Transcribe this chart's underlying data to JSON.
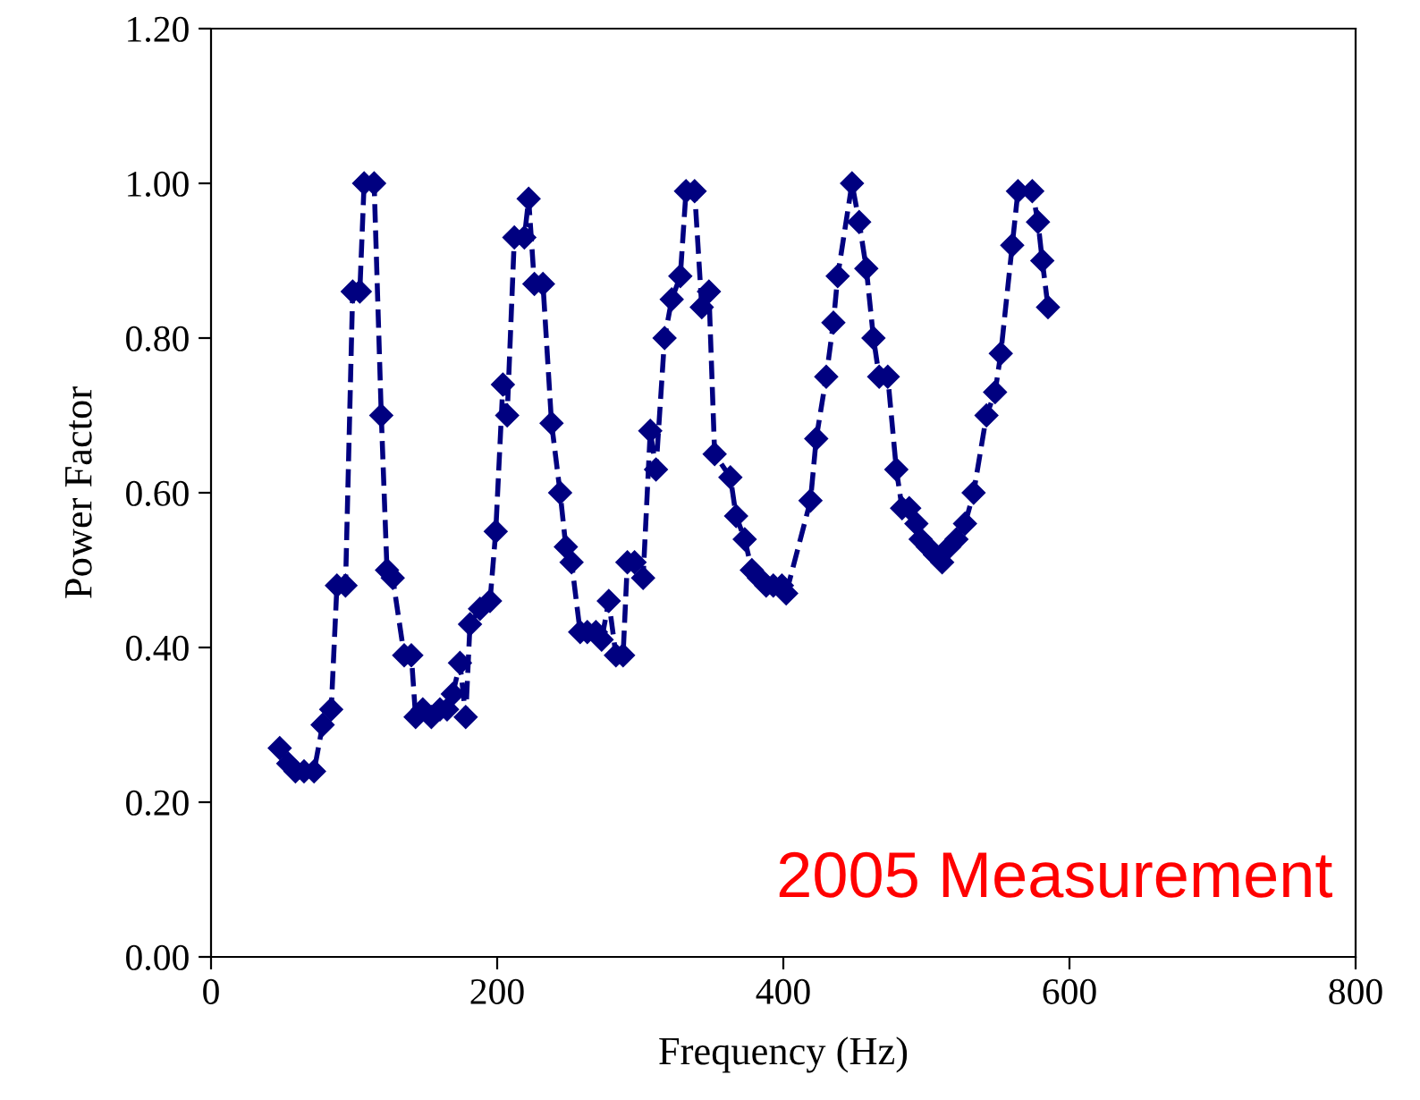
{
  "chart_data": {
    "type": "line",
    "xlabel": "Frequency (Hz)",
    "ylabel": "Power Factor",
    "xlim": [
      0,
      800
    ],
    "xticks": [
      0,
      200,
      400,
      600,
      800
    ],
    "ylim": [
      0,
      1.2
    ],
    "yticks": [
      {
        "value": 0,
        "label": "0.00"
      },
      {
        "value": 0.2,
        "label": "0.20"
      },
      {
        "value": 0.4,
        "label": "0.40"
      },
      {
        "value": 0.6,
        "label": "0.60"
      },
      {
        "value": 0.8,
        "label": "0.80"
      },
      {
        "value": 1.0,
        "label": "1.00"
      },
      {
        "value": 1.2,
        "label": "1.20"
      }
    ],
    "grid": false,
    "marker": "diamond",
    "line_style": "dashed",
    "annotations": [
      "2005 Measurement"
    ],
    "series": [
      {
        "color": "#000080",
        "x": [
          48,
          54,
          59,
          65,
          72,
          78,
          84,
          88,
          94,
          99,
          104,
          107,
          114,
          119,
          123,
          127,
          135,
          140,
          143,
          148,
          154,
          160,
          165,
          169,
          174,
          178,
          181,
          188,
          195,
          199,
          204,
          207,
          212,
          219,
          222,
          226,
          232,
          238,
          244,
          248,
          252,
          258,
          263,
          269,
          273,
          278,
          283,
          288,
          291,
          296,
          302,
          307,
          311,
          317,
          322,
          328,
          332,
          338,
          343,
          348,
          352,
          363,
          367,
          373,
          378,
          383,
          388,
          393,
          399,
          402,
          419,
          423,
          430,
          435,
          438,
          448,
          453,
          458,
          463,
          467,
          473,
          479,
          483,
          488,
          493,
          496,
          501,
          506,
          511,
          516,
          521,
          527,
          533,
          542,
          548,
          552,
          560,
          564,
          574,
          578,
          581,
          585
        ],
        "values": [
          0.27,
          0.25,
          0.24,
          0.24,
          0.24,
          0.3,
          0.32,
          0.48,
          0.48,
          0.86,
          0.86,
          1.0,
          1.0,
          0.7,
          0.5,
          0.49,
          0.39,
          0.39,
          0.31,
          0.32,
          0.31,
          0.32,
          0.32,
          0.34,
          0.38,
          0.31,
          0.43,
          0.45,
          0.46,
          0.55,
          0.74,
          0.7,
          0.93,
          0.93,
          0.98,
          0.87,
          0.87,
          0.69,
          0.6,
          0.53,
          0.51,
          0.42,
          0.42,
          0.42,
          0.41,
          0.46,
          0.39,
          0.39,
          0.51,
          0.51,
          0.49,
          0.68,
          0.63,
          0.8,
          0.85,
          0.88,
          0.99,
          0.99,
          0.84,
          0.86,
          0.65,
          0.62,
          0.57,
          0.54,
          0.5,
          0.49,
          0.48,
          0.48,
          0.48,
          0.47,
          0.59,
          0.67,
          0.75,
          0.82,
          0.88,
          1.0,
          0.95,
          0.89,
          0.8,
          0.75,
          0.75,
          0.63,
          0.58,
          0.58,
          0.56,
          0.54,
          0.53,
          0.52,
          0.51,
          0.53,
          0.54,
          0.56,
          0.6,
          0.7,
          0.73,
          0.78,
          0.92,
          0.99,
          0.99,
          0.95,
          0.9,
          0.84
        ]
      }
    ]
  }
}
